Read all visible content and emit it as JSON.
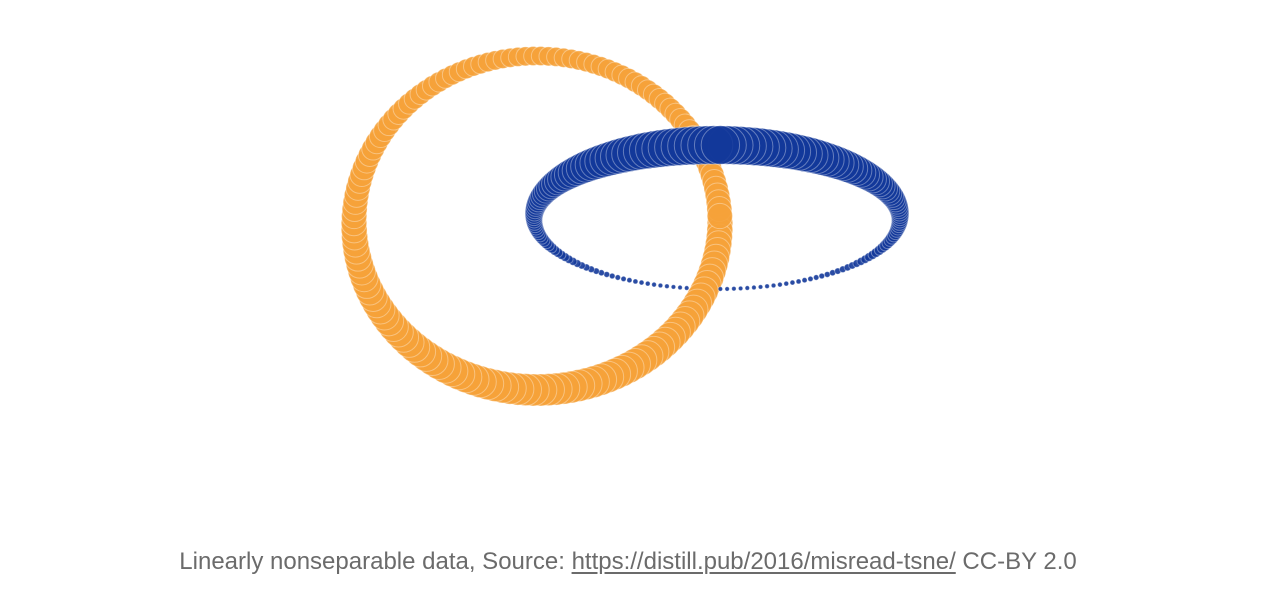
{
  "figure": {
    "rings": [
      {
        "name": "orange-ring",
        "color": "#f5a23a"
      },
      {
        "name": "blue-ring",
        "color": "#13399a"
      }
    ]
  },
  "caption": {
    "prefix": "Linearly nonseparable data, Source: ",
    "link_text": "https://distill.pub/2016/misread-tsne/",
    "suffix": " CC-BY 2.0"
  }
}
